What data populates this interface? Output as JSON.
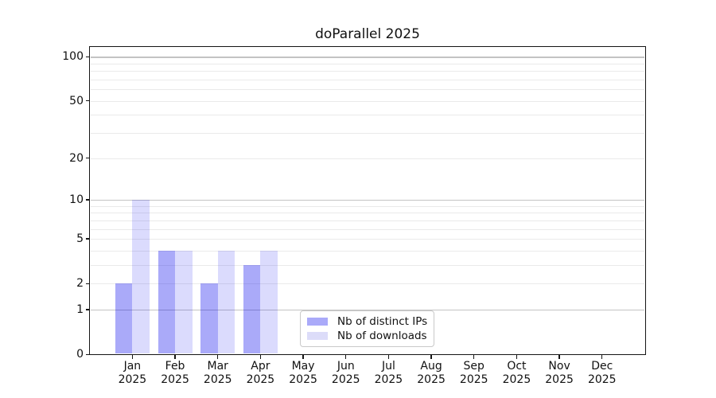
{
  "chart_data": {
    "type": "bar",
    "title": "doParallel 2025",
    "categories": [
      "Jan 2025",
      "Feb 2025",
      "Mar 2025",
      "Apr 2025",
      "May 2025",
      "Jun 2025",
      "Jul 2025",
      "Aug 2025",
      "Sep 2025",
      "Oct 2025",
      "Nov 2025",
      "Dec 2025"
    ],
    "series": [
      {
        "name": "Nb of distinct IPs",
        "color_hex": "#aaaaf9",
        "color_rgba": "rgba(0,0,238,0.335)",
        "values": [
          2,
          4,
          2,
          3,
          0,
          0,
          0,
          0,
          0,
          0,
          0,
          0
        ]
      },
      {
        "name": "Nb of downloads",
        "color_hex": "#dcdcf9",
        "color_rgba": "rgba(10,10,240,0.145)",
        "values": [
          10,
          4,
          4,
          4,
          0,
          0,
          0,
          0,
          0,
          0,
          0,
          0
        ]
      }
    ],
    "xlabel": "",
    "ylabel": "",
    "y_scale": "log1p",
    "ylim": [
      0,
      116
    ],
    "y_tick_labels": [
      0,
      1,
      2,
      5,
      10,
      20,
      50,
      100
    ],
    "y_major_gridlines": [
      1,
      10,
      100
    ],
    "y_minor_gridlines": [
      2,
      3,
      4,
      5,
      6,
      7,
      8,
      9,
      20,
      30,
      40,
      50,
      60,
      70,
      80,
      90
    ],
    "grid": "on",
    "legend_position": "lower center",
    "colors": {
      "axis": "#151515",
      "grid_major": "#c3c3c3",
      "grid_minor": "#eaeaea",
      "background": "#ffffff"
    }
  }
}
